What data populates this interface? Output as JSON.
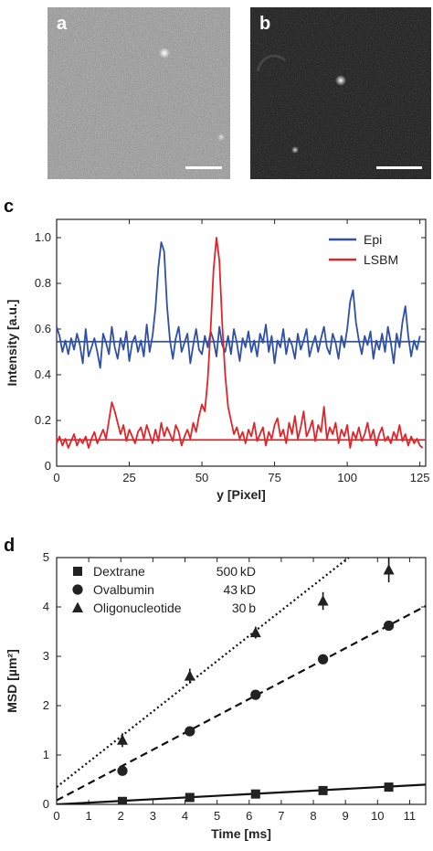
{
  "panels": {
    "a": "a",
    "b": "b",
    "c": "c",
    "d": "d"
  },
  "image_colors": {
    "a": "#8e8e8e",
    "b": "#1a1a1a"
  },
  "chart_data": [
    {
      "id": "c",
      "type": "line",
      "xlabel": "y [Pixel]",
      "ylabel": "Intensity [a.u.]",
      "xlim": [
        0,
        127
      ],
      "ylim": [
        0,
        1.08
      ],
      "xticks": [
        0,
        25,
        50,
        75,
        100,
        125
      ],
      "yticks": [
        0,
        0.2,
        0.4,
        0.6,
        0.8,
        1.0
      ],
      "ytick_labels": [
        "0",
        "0.2",
        "0.4",
        "0.6",
        "0.8",
        "1.0"
      ],
      "legend_position": "top-right",
      "series": [
        {
          "name": "Epi",
          "color": "#2f4fa8",
          "baseline": 0.545,
          "values": [
            0.61,
            0.57,
            0.5,
            0.55,
            0.49,
            0.56,
            0.51,
            0.58,
            0.53,
            0.45,
            0.6,
            0.48,
            0.52,
            0.56,
            0.5,
            0.43,
            0.58,
            0.54,
            0.49,
            0.61,
            0.52,
            0.47,
            0.56,
            0.51,
            0.59,
            0.46,
            0.54,
            0.57,
            0.5,
            0.55,
            0.48,
            0.62,
            0.5,
            0.57,
            0.69,
            0.87,
            0.98,
            0.94,
            0.7,
            0.55,
            0.47,
            0.56,
            0.61,
            0.5,
            0.54,
            0.58,
            0.45,
            0.53,
            0.6,
            0.51,
            0.49,
            0.57,
            0.52,
            0.59,
            0.55,
            0.48,
            0.61,
            0.53,
            0.5,
            0.57,
            0.49,
            0.6,
            0.54,
            0.46,
            0.56,
            0.52,
            0.59,
            0.5,
            0.55,
            0.48,
            0.58,
            0.54,
            0.62,
            0.5,
            0.57,
            0.45,
            0.55,
            0.52,
            0.6,
            0.49,
            0.56,
            0.53,
            0.47,
            0.58,
            0.51,
            0.55,
            0.6,
            0.48,
            0.53,
            0.57,
            0.5,
            0.56,
            0.61,
            0.52,
            0.49,
            0.58,
            0.54,
            0.47,
            0.57,
            0.52,
            0.6,
            0.72,
            0.77,
            0.63,
            0.55,
            0.49,
            0.57,
            0.53,
            0.59,
            0.47,
            0.55,
            0.51,
            0.58,
            0.5,
            0.61,
            0.54,
            0.45,
            0.58,
            0.52,
            0.63,
            0.7,
            0.57,
            0.48,
            0.55,
            0.51,
            0.57
          ]
        },
        {
          "name": "LSBM",
          "color": "#e0252a",
          "baseline": 0.115,
          "values": [
            0.1,
            0.13,
            0.09,
            0.12,
            0.08,
            0.11,
            0.14,
            0.09,
            0.12,
            0.1,
            0.13,
            0.08,
            0.12,
            0.15,
            0.1,
            0.13,
            0.16,
            0.12,
            0.2,
            0.28,
            0.24,
            0.19,
            0.14,
            0.18,
            0.11,
            0.16,
            0.13,
            0.1,
            0.15,
            0.17,
            0.12,
            0.18,
            0.14,
            0.1,
            0.16,
            0.11,
            0.19,
            0.13,
            0.17,
            0.14,
            0.11,
            0.18,
            0.15,
            0.09,
            0.13,
            0.16,
            0.12,
            0.19,
            0.15,
            0.22,
            0.27,
            0.24,
            0.38,
            0.6,
            0.86,
            1.0,
            0.9,
            0.62,
            0.4,
            0.26,
            0.2,
            0.14,
            0.17,
            0.12,
            0.15,
            0.1,
            0.16,
            0.13,
            0.19,
            0.11,
            0.14,
            0.17,
            0.09,
            0.15,
            0.12,
            0.18,
            0.21,
            0.13,
            0.16,
            0.1,
            0.19,
            0.14,
            0.22,
            0.12,
            0.17,
            0.24,
            0.13,
            0.16,
            0.2,
            0.11,
            0.18,
            0.15,
            0.26,
            0.12,
            0.17,
            0.14,
            0.19,
            0.1,
            0.16,
            0.13,
            0.18,
            0.08,
            0.15,
            0.12,
            0.17,
            0.11,
            0.14,
            0.19,
            0.12,
            0.16,
            0.09,
            0.14,
            0.17,
            0.11,
            0.13,
            0.1,
            0.15,
            0.12,
            0.18,
            0.11,
            0.14,
            0.09,
            0.13,
            0.1,
            0.12,
            0.09,
            0.08
          ]
        }
      ]
    },
    {
      "id": "d",
      "type": "scatter",
      "xlabel": "Time [ms]",
      "ylabel": "MSD [µm²]",
      "xlim": [
        0,
        11.5
      ],
      "ylim": [
        0,
        5
      ],
      "xticks": [
        0,
        1,
        2,
        3,
        4,
        5,
        6,
        7,
        8,
        9,
        10,
        11
      ],
      "yticks": [
        0,
        1,
        2,
        3,
        4,
        5
      ],
      "legend_position": "top-left",
      "series": [
        {
          "name": "Dextrane",
          "size_label": "500 kD",
          "marker": "square",
          "line": "solid",
          "fit": [
            [
              0,
              0.0
            ],
            [
              11.5,
              0.4
            ]
          ],
          "points": [
            {
              "x": 2.05,
              "y": 0.06,
              "err": 0.04
            },
            {
              "x": 4.15,
              "y": 0.14,
              "err": 0.05
            },
            {
              "x": 6.2,
              "y": 0.21,
              "err": 0.06
            },
            {
              "x": 8.3,
              "y": 0.28,
              "err": 0.06
            },
            {
              "x": 10.35,
              "y": 0.35,
              "err": 0.07
            }
          ]
        },
        {
          "name": "Ovalbumin",
          "size_label": "43 kD",
          "marker": "circle",
          "line": "dashed",
          "fit": [
            [
              0,
              0.08
            ],
            [
              11.5,
              4.02
            ]
          ],
          "points": [
            {
              "x": 2.05,
              "y": 0.68,
              "err": 0.06
            },
            {
              "x": 4.15,
              "y": 1.48,
              "err": 0.07
            },
            {
              "x": 6.2,
              "y": 2.22,
              "err": 0.08
            },
            {
              "x": 8.3,
              "y": 2.94,
              "err": 0.09
            },
            {
              "x": 10.35,
              "y": 3.62,
              "err": 0.1
            }
          ]
        },
        {
          "name": "Oligonucleotide",
          "size_label": "30 b",
          "marker": "triangle",
          "line": "dotted",
          "fit": [
            [
              0,
              0.35
            ],
            [
              9.1,
              5.0
            ]
          ],
          "points": [
            {
              "x": 2.05,
              "y": 1.3,
              "err": 0.14
            },
            {
              "x": 4.15,
              "y": 2.6,
              "err": 0.15
            },
            {
              "x": 6.2,
              "y": 3.48,
              "err": 0.12
            },
            {
              "x": 8.3,
              "y": 4.12,
              "err": 0.18
            },
            {
              "x": 10.35,
              "y": 4.75,
              "err": 0.25
            }
          ]
        }
      ]
    }
  ]
}
